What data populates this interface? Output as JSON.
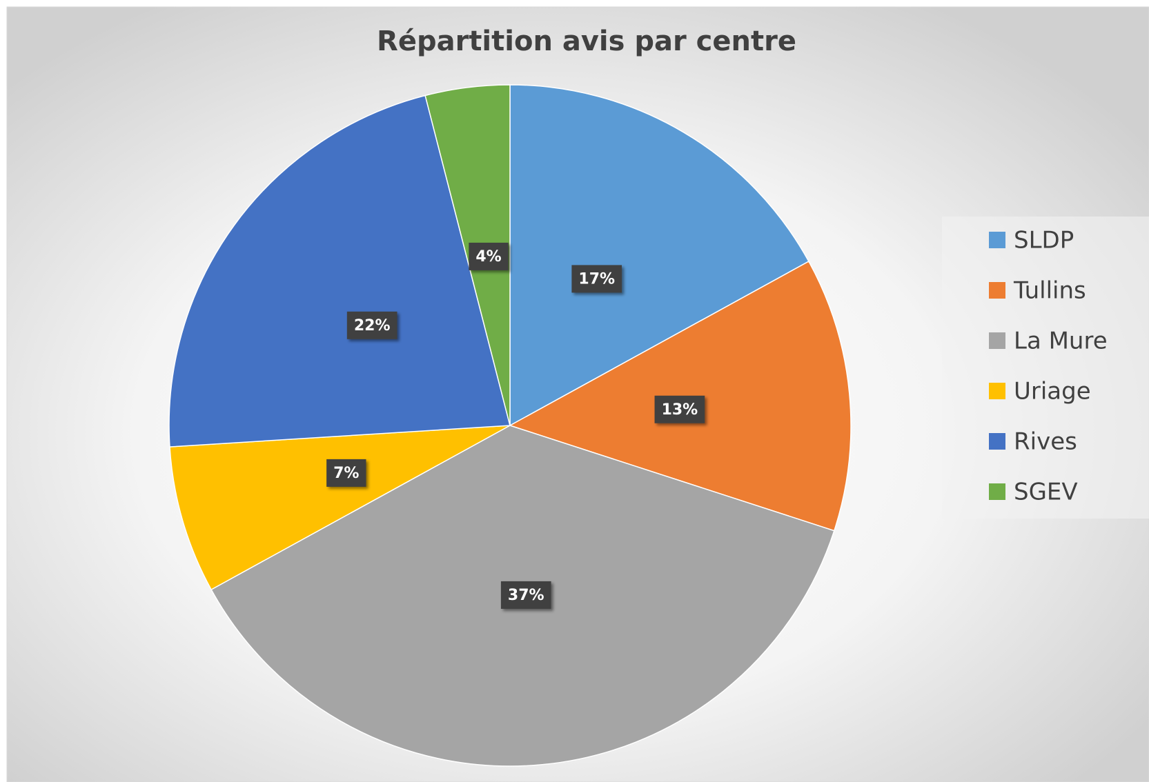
{
  "chart_data": {
    "type": "pie",
    "title": "Répartition avis par centre",
    "categories": [
      "SLDP",
      "Tullins",
      "La Mure",
      "Uriage",
      "Rives",
      "SGEV"
    ],
    "values": [
      17,
      13,
      37,
      7,
      22,
      4
    ],
    "value_labels": [
      "17%",
      "13%",
      "37%",
      "7%",
      "22%",
      "4%"
    ],
    "colors": [
      "#5b9bd5",
      "#ed7d31",
      "#a5a5a5",
      "#ffc000",
      "#4472c4",
      "#70ad47"
    ],
    "legend": "right"
  }
}
